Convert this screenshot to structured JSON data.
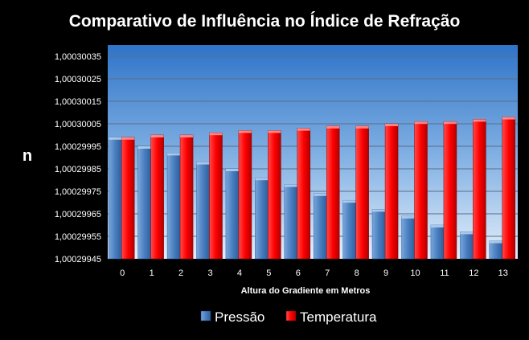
{
  "chart_data": {
    "type": "bar",
    "title": "Comparativo de Influência no Índice de Refração",
    "xlabel": "Altura do Gradiente em Metros",
    "ylabel": "n",
    "categories": [
      "0",
      "1",
      "2",
      "3",
      "4",
      "5",
      "6",
      "7",
      "8",
      "9",
      "10",
      "11",
      "12",
      "13"
    ],
    "ylim": [
      1.00029945,
      1.0003004
    ],
    "ytick_labels": [
      "1,00029945",
      "1,00029955",
      "1,00029965",
      "1,00029975",
      "1,00029985",
      "1,00029995",
      "1,00030005",
      "1,00030015",
      "1,00030025",
      "1,00030035"
    ],
    "ytick_values": [
      1.00029945,
      1.00029955,
      1.00029965,
      1.00029975,
      1.00029985,
      1.00029995,
      1.00030005,
      1.00030015,
      1.00030025,
      1.00030035
    ],
    "series": [
      {
        "name": "Pressão",
        "color": "#4a7fc0",
        "values": [
          1.00029999,
          1.00029995,
          1.00029992,
          1.00029988,
          1.00029985,
          1.00029981,
          1.00029978,
          1.00029974,
          1.00029971,
          1.00029967,
          1.00029964,
          1.0002996,
          1.00029957,
          1.00029953
        ]
      },
      {
        "name": "Temperatura",
        "color": "#ff0000",
        "values": [
          1.00029999,
          1.0003,
          1.0003,
          1.00030001,
          1.00030002,
          1.00030002,
          1.00030003,
          1.00030004,
          1.00030004,
          1.00030005,
          1.00030006,
          1.00030006,
          1.00030007,
          1.00030008
        ]
      }
    ],
    "grid": true,
    "legend_position": "bottom"
  }
}
